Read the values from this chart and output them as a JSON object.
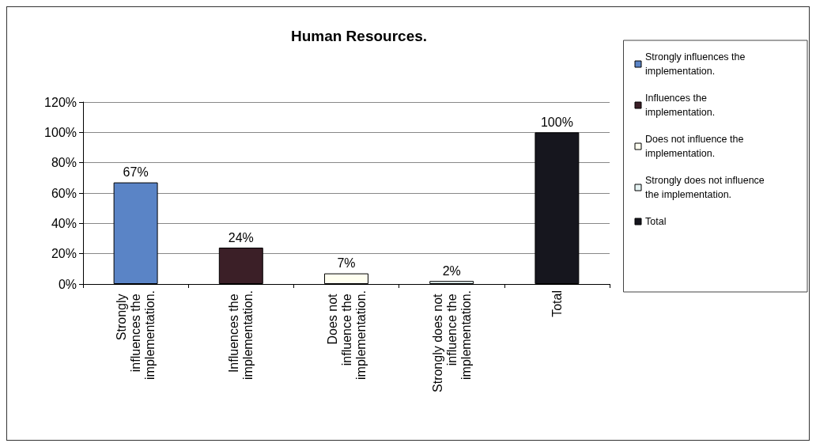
{
  "chart_data": {
    "type": "bar",
    "title": "Human Resources.",
    "categories": [
      "Strongly influences the implementation.",
      "Influences the implementation.",
      "Does not influence the implementation.",
      "Strongly does not influence the implementation.",
      "Total"
    ],
    "series": [
      {
        "name": "Strongly influences the implementation.",
        "color": "#5a84c6",
        "values": [
          67,
          null,
          null,
          null,
          null
        ],
        "value_labels": [
          "67%",
          null,
          null,
          null,
          null
        ]
      },
      {
        "name": "Influences the implementation.",
        "color": "#3b1f27",
        "values": [
          null,
          24,
          null,
          null,
          null
        ],
        "value_labels": [
          null,
          "24%",
          null,
          null,
          null
        ]
      },
      {
        "name": "Does not influence the implementation.",
        "color": "#fffff0",
        "values": [
          null,
          null,
          7,
          null,
          null
        ],
        "value_labels": [
          null,
          null,
          "7%",
          null,
          null
        ]
      },
      {
        "name": "Strongly does not influence the implementation.",
        "color": "#e4f2f2",
        "values": [
          null,
          null,
          null,
          2,
          null
        ],
        "value_labels": [
          null,
          null,
          null,
          "2%",
          null
        ]
      },
      {
        "name": "Total",
        "color": "#16161e",
        "values": [
          null,
          null,
          null,
          null,
          100
        ],
        "value_labels": [
          null,
          null,
          null,
          null,
          "100%"
        ]
      }
    ],
    "ylim": [
      0,
      120
    ],
    "yticks": [
      {
        "value": 0,
        "label": "0%"
      },
      {
        "value": 20,
        "label": "20%"
      },
      {
        "value": 40,
        "label": "40%"
      },
      {
        "value": 60,
        "label": "60%"
      },
      {
        "value": 80,
        "label": "80%"
      },
      {
        "value": 100,
        "label": "100%"
      },
      {
        "value": 120,
        "label": "120%"
      }
    ],
    "grid": "y",
    "legend": "right"
  }
}
